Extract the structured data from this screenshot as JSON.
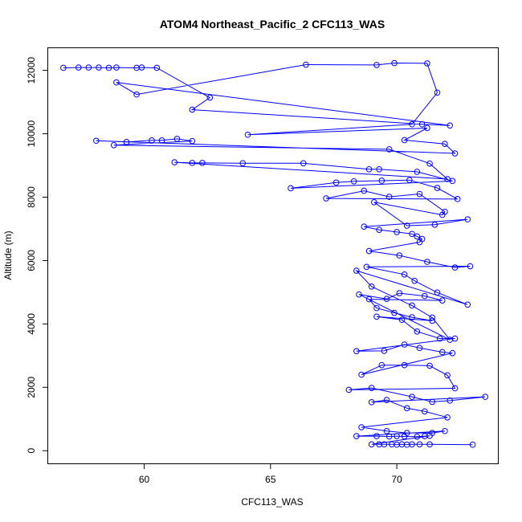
{
  "chart_data": {
    "type": "scatter",
    "title": "ATOM4 Northeast_Pacific_2 CFC113_WAS",
    "xlabel": "CFC113_WAS",
    "ylabel": "Altitude (m)",
    "xlim": [
      56.2,
      74.0
    ],
    "ylim": [
      -400,
      12700
    ],
    "xticks": [
      60,
      65,
      70
    ],
    "yticks": [
      0,
      2000,
      4000,
      6000,
      8000,
      10000,
      12000
    ],
    "grid": false,
    "series_color": "#0000ff",
    "marker": "open-circle",
    "connected": true,
    "points": [
      [
        56.8,
        12080
      ],
      [
        57.4,
        12090
      ],
      [
        57.8,
        12090
      ],
      [
        58.2,
        12090
      ],
      [
        58.6,
        12080
      ],
      [
        58.9,
        12090
      ],
      [
        59.7,
        12080
      ],
      [
        59.9,
        12090
      ],
      [
        60.5,
        12080
      ],
      [
        62.6,
        11140
      ],
      [
        61.9,
        10760
      ],
      [
        71.0,
        10300
      ],
      [
        72.1,
        10260
      ],
      [
        58.9,
        11620
      ],
      [
        59.7,
        11240
      ],
      [
        66.4,
        12180
      ],
      [
        69.2,
        12170
      ],
      [
        69.9,
        12230
      ],
      [
        71.2,
        12220
      ],
      [
        71.6,
        11300
      ],
      [
        70.6,
        10300
      ],
      [
        64.1,
        9970
      ],
      [
        71.2,
        10180
      ],
      [
        70.3,
        9800
      ],
      [
        71.9,
        9680
      ],
      [
        72.3,
        9380
      ],
      [
        58.1,
        9780
      ],
      [
        59.3,
        9740
      ],
      [
        60.3,
        9790
      ],
      [
        60.7,
        9790
      ],
      [
        61.3,
        9840
      ],
      [
        61.9,
        9770
      ],
      [
        58.8,
        9640
      ],
      [
        69.7,
        9510
      ],
      [
        71.3,
        9060
      ],
      [
        72.0,
        8570
      ],
      [
        61.2,
        9100
      ],
      [
        61.9,
        9080
      ],
      [
        62.3,
        9080
      ],
      [
        63.9,
        9070
      ],
      [
        66.3,
        9070
      ],
      [
        68.9,
        8880
      ],
      [
        69.3,
        8880
      ],
      [
        70.8,
        8800
      ],
      [
        72.2,
        8510
      ],
      [
        65.8,
        8280
      ],
      [
        67.6,
        8460
      ],
      [
        68.3,
        8500
      ],
      [
        69.4,
        8520
      ],
      [
        70.5,
        8540
      ],
      [
        71.6,
        8290
      ],
      [
        72.4,
        7940
      ],
      [
        67.2,
        7960
      ],
      [
        68.7,
        8200
      ],
      [
        69.7,
        8010
      ],
      [
        70.9,
        8100
      ],
      [
        71.9,
        7540
      ],
      [
        71.8,
        7440
      ],
      [
        69.1,
        7840
      ],
      [
        70.4,
        7100
      ],
      [
        71.5,
        7130
      ],
      [
        72.8,
        7300
      ],
      [
        68.7,
        7070
      ],
      [
        69.3,
        6970
      ],
      [
        70.0,
        6900
      ],
      [
        70.6,
        6840
      ],
      [
        70.8,
        6760
      ],
      [
        71.0,
        6680
      ],
      [
        70.9,
        6580
      ],
      [
        68.9,
        6300
      ],
      [
        70.1,
        6160
      ],
      [
        71.2,
        5960
      ],
      [
        72.3,
        5780
      ],
      [
        72.9,
        5820
      ],
      [
        68.8,
        5800
      ],
      [
        70.3,
        5560
      ],
      [
        70.7,
        5360
      ],
      [
        71.6,
        4990
      ],
      [
        72.8,
        4610
      ],
      [
        68.4,
        5680
      ],
      [
        69.0,
        5180
      ],
      [
        70.6,
        4580
      ],
      [
        71.4,
        4200
      ],
      [
        72.1,
        3500
      ],
      [
        68.5,
        4930
      ],
      [
        69.6,
        4790
      ],
      [
        70.1,
        4970
      ],
      [
        71.1,
        4880
      ],
      [
        71.8,
        4740
      ],
      [
        68.9,
        4780
      ],
      [
        69.2,
        4500
      ],
      [
        69.9,
        4350
      ],
      [
        70.6,
        4210
      ],
      [
        71.4,
        4100
      ],
      [
        69.2,
        4230
      ],
      [
        70.2,
        4130
      ],
      [
        70.8,
        3760
      ],
      [
        71.7,
        3540
      ],
      [
        72.3,
        3540
      ],
      [
        68.4,
        3140
      ],
      [
        69.5,
        3150
      ],
      [
        70.3,
        3350
      ],
      [
        70.9,
        3240
      ],
      [
        71.8,
        3110
      ],
      [
        72.2,
        3080
      ],
      [
        68.6,
        2400
      ],
      [
        69.4,
        2700
      ],
      [
        70.3,
        2700
      ],
      [
        71.3,
        2680
      ],
      [
        72.0,
        2380
      ],
      [
        72.3,
        1970
      ],
      [
        68.1,
        1920
      ],
      [
        69.0,
        1980
      ],
      [
        70.6,
        1700
      ],
      [
        71.4,
        1540
      ],
      [
        72.1,
        1580
      ],
      [
        73.5,
        1700
      ],
      [
        69.0,
        1530
      ],
      [
        69.6,
        1600
      ],
      [
        70.4,
        1340
      ],
      [
        71.1,
        1240
      ],
      [
        72.0,
        1050
      ],
      [
        68.6,
        740
      ],
      [
        69.6,
        620
      ],
      [
        70.4,
        560
      ],
      [
        71.4,
        560
      ],
      [
        71.9,
        620
      ],
      [
        68.4,
        460
      ],
      [
        69.2,
        460
      ],
      [
        69.7,
        450
      ],
      [
        70.0,
        460
      ],
      [
        70.3,
        450
      ],
      [
        70.8,
        440
      ],
      [
        71.1,
        460
      ],
      [
        71.3,
        470
      ],
      [
        69.0,
        200
      ],
      [
        69.3,
        200
      ],
      [
        69.5,
        200
      ],
      [
        69.8,
        200
      ],
      [
        70.0,
        190
      ],
      [
        70.2,
        200
      ],
      [
        70.4,
        190
      ],
      [
        70.6,
        200
      ],
      [
        70.9,
        200
      ],
      [
        71.3,
        200
      ],
      [
        73.0,
        190
      ]
    ]
  }
}
